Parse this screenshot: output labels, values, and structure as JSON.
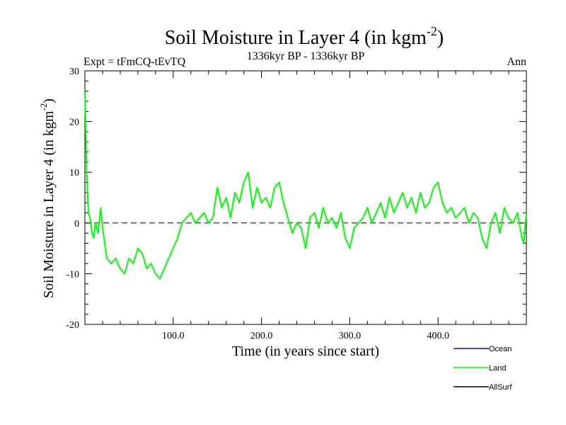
{
  "chart_data": {
    "type": "line",
    "title": "Soil Moisture in Layer 4 (in kgm",
    "title_sup": "-2",
    "title_close": ")",
    "subtitle_left": "Expt = tFmCQ-tEvTQ",
    "subtitle_center": "1336kyr BP - 1336kyr BP",
    "subtitle_right": "Ann",
    "xlabel": "Time (in years since start)",
    "ylabel": "Soil Moisture in Layer 4 (in kgm",
    "ylabel_sup": "-2",
    "ylabel_close": ")",
    "xlim": [
      0,
      500
    ],
    "ylim": [
      -20,
      30
    ],
    "x_ticks": [
      100,
      200,
      300,
      400
    ],
    "x_tick_labels": [
      "100.0",
      "200.0",
      "300.0",
      "400.0"
    ],
    "y_ticks": [
      -20,
      -10,
      0,
      10,
      20,
      30
    ],
    "y_tick_labels": [
      "-20",
      "-10",
      "0",
      "10",
      "20",
      "30"
    ],
    "zero_line": 0,
    "legend": [
      {
        "name": "Ocean",
        "color": "#0000ff"
      },
      {
        "name": "Land",
        "color": "#00ff00"
      },
      {
        "name": "AllSurf",
        "color": "#000000"
      }
    ],
    "series": [
      {
        "name": "Land",
        "color": "#00ff00",
        "x": [
          0,
          2,
          4,
          6,
          8,
          10,
          12,
          15,
          18,
          20,
          25,
          30,
          35,
          40,
          45,
          50,
          55,
          60,
          65,
          70,
          75,
          80,
          85,
          90,
          95,
          100,
          105,
          110,
          115,
          120,
          125,
          130,
          135,
          140,
          145,
          150,
          155,
          160,
          165,
          170,
          175,
          180,
          185,
          190,
          195,
          200,
          205,
          210,
          215,
          220,
          225,
          230,
          235,
          240,
          245,
          250,
          255,
          260,
          265,
          270,
          275,
          280,
          285,
          290,
          295,
          300,
          305,
          310,
          315,
          320,
          325,
          330,
          335,
          340,
          345,
          350,
          355,
          360,
          365,
          370,
          375,
          380,
          385,
          390,
          395,
          400,
          405,
          410,
          415,
          420,
          425,
          430,
          435,
          440,
          445,
          450,
          455,
          460,
          465,
          470,
          475,
          480,
          485,
          490,
          495,
          497,
          500
        ],
        "y": [
          26,
          10,
          2,
          1,
          -2,
          -3,
          0,
          -2,
          3,
          -1,
          -7,
          -8,
          -7,
          -9,
          -10,
          -7,
          -8,
          -5,
          -6,
          -9,
          -8,
          -10,
          -11,
          -9,
          -7,
          -5,
          -3,
          0,
          1,
          2,
          0,
          1,
          2,
          0,
          1,
          7,
          3,
          5,
          1,
          6,
          4,
          8,
          10,
          3,
          7,
          4,
          5,
          3,
          7,
          8,
          4,
          1,
          -2,
          0,
          -1,
          -5,
          1,
          2,
          -1,
          3,
          0,
          1,
          -1,
          2,
          -3,
          -5,
          -1,
          0,
          1,
          3,
          0,
          2,
          4,
          1,
          5,
          2,
          4,
          6,
          3,
          5,
          2,
          6,
          3,
          4,
          7,
          8,
          4,
          2,
          3,
          1,
          2,
          3,
          0,
          2,
          1,
          -3,
          -5,
          0,
          2,
          -2,
          3,
          1,
          0,
          2,
          -3,
          -4,
          2
        ]
      }
    ]
  }
}
